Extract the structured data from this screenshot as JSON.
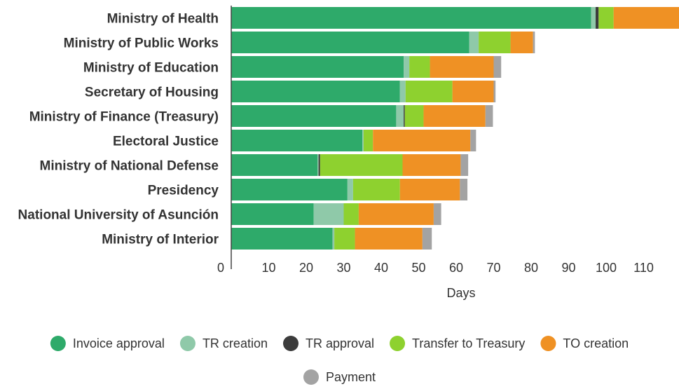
{
  "chart_data": {
    "type": "bar",
    "orientation": "horizontal",
    "stacked": true,
    "categories": [
      "Ministry of Health",
      "Ministry of Public Works",
      "Ministry of Education",
      "Secretary of Housing",
      "Ministry of Finance (Treasury)",
      "Electoral Justice",
      "Ministry of National Defense",
      "Presidency",
      "National University of Asunción",
      "Ministry of Interior"
    ],
    "series": [
      {
        "name": "Invoice approval",
        "color": "#2eaa6a",
        "values": [
          96,
          63.5,
          46,
          45,
          44,
          35,
          23,
          31,
          22,
          27
        ]
      },
      {
        "name": "TR creation",
        "color": "#8fc9a9",
        "values": [
          1.2,
          2.5,
          1.5,
          1.5,
          2,
          0.3,
          0.3,
          1.5,
          8,
          0.5
        ]
      },
      {
        "name": "TR approval",
        "color": "#3c3c3c",
        "values": [
          0.8,
          0,
          0,
          0,
          0.3,
          0,
          0.4,
          0,
          0,
          0
        ]
      },
      {
        "name": "Transfer to Treasury",
        "color": "#8ed12f",
        "values": [
          4,
          8.5,
          5.5,
          12.5,
          5,
          2.5,
          22,
          12.5,
          4,
          5.5
        ]
      },
      {
        "name": "TO creation",
        "color": "#ef9124",
        "values": [
          18,
          6,
          17,
          11,
          16.5,
          26,
          15.5,
          16,
          20,
          18
        ]
      },
      {
        "name": "Payment",
        "color": "#a3a3a3",
        "values": [
          2,
          0.5,
          2,
          0.5,
          2,
          1.5,
          2,
          2,
          2,
          2.5
        ]
      }
    ],
    "xticks": [
      0,
      10,
      20,
      30,
      40,
      50,
      60,
      70,
      80,
      90,
      100,
      110
    ],
    "xlim": [
      0,
      120
    ],
    "xlabel": "Days",
    "legend_position": "bottom"
  }
}
